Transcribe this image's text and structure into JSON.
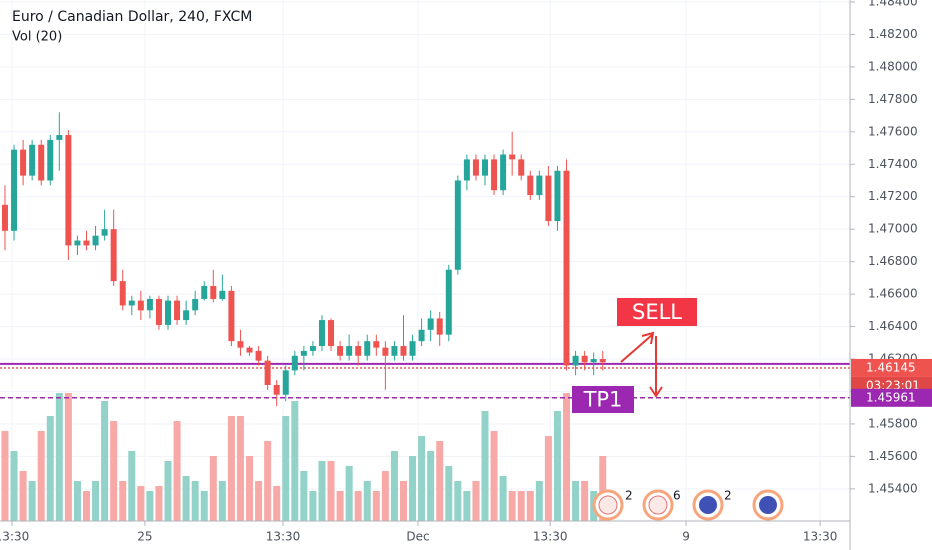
{
  "chart_data": {
    "type": "candlestick",
    "title": "Euro / Canadian Dollar, 240, FXCM",
    "subtitle": "Vol (20)",
    "up_color": "#26a69a",
    "down_color": "#ef5350",
    "volume_up_color": "#92d2c8",
    "volume_down_color": "#f7a9a7",
    "grid": true,
    "x": [
      0,
      1,
      2,
      3,
      4,
      5,
      6,
      7,
      8,
      9,
      10,
      11,
      12,
      13,
      14,
      15,
      16,
      17,
      18,
      19,
      20,
      21,
      22,
      23,
      24,
      25,
      26,
      27,
      28,
      29,
      30,
      31,
      32,
      33,
      34,
      35,
      36,
      37,
      38,
      39,
      40,
      41,
      42,
      43,
      44,
      45,
      46,
      47,
      48,
      49,
      50,
      51,
      52,
      53,
      54,
      55,
      56,
      57,
      58,
      59,
      60,
      61,
      62,
      63,
      64,
      65,
      66
    ],
    "open": [
      1.4715,
      1.4699,
      1.4749,
      1.4733,
      1.4752,
      1.473,
      1.4755,
      1.4758,
      1.469,
      1.4693,
      1.469,
      1.4696,
      1.47,
      1.4668,
      1.4653,
      1.4656,
      1.465,
      1.4657,
      1.4641,
      1.4656,
      1.4644,
      1.465,
      1.4657,
      1.4665,
      1.4657,
      1.4662,
      1.4631,
      1.4627,
      1.4625,
      1.4619,
      1.4604,
      1.4598,
      1.4613,
      1.4622,
      1.4625,
      1.4628,
      1.4644,
      1.4628,
      1.4622,
      1.4628,
      1.4622,
      1.4631,
      1.4627,
      1.4622,
      1.4628,
      1.4622,
      1.4631,
      1.4638,
      1.4645,
      1.4635,
      1.4675,
      1.473,
      1.4743,
      1.4733,
      1.4743,
      1.4724,
      1.4746,
      1.4743,
      1.4733,
      1.4721,
      1.4733,
      1.4705,
      1.4736,
      1.4616,
      1.4622,
      1.4618,
      1.462
    ],
    "high": [
      1.4727,
      1.4752,
      1.4755,
      1.4755,
      1.4755,
      1.4758,
      1.4772,
      1.4761,
      1.4696,
      1.4699,
      1.4702,
      1.4712,
      1.4712,
      1.4675,
      1.4659,
      1.4662,
      1.4659,
      1.4659,
      1.4659,
      1.4659,
      1.4656,
      1.4662,
      1.4668,
      1.4675,
      1.4672,
      1.4665,
      1.4638,
      1.4628,
      1.4628,
      1.4622,
      1.4607,
      1.4616,
      1.4625,
      1.4628,
      1.4631,
      1.4647,
      1.4645,
      1.4631,
      1.4635,
      1.4631,
      1.4635,
      1.4635,
      1.4631,
      1.4631,
      1.4647,
      1.4635,
      1.4645,
      1.465,
      1.4649,
      1.4678,
      1.4733,
      1.4746,
      1.4746,
      1.4746,
      1.4746,
      1.4749,
      1.476,
      1.4746,
      1.4736,
      1.4736,
      1.4739,
      1.4739,
      1.4743,
      1.4625,
      1.4625,
      1.4624,
      1.4625
    ],
    "low": [
      1.4687,
      1.4693,
      1.4727,
      1.473,
      1.4727,
      1.4727,
      1.4736,
      1.4681,
      1.4684,
      1.4687,
      1.4687,
      1.4693,
      1.4665,
      1.465,
      1.4647,
      1.4644,
      1.4645,
      1.4638,
      1.4638,
      1.4641,
      1.4641,
      1.4647,
      1.4656,
      1.4655,
      1.4656,
      1.4628,
      1.4622,
      1.4622,
      1.4616,
      1.4601,
      1.4591,
      1.4594,
      1.461,
      1.4613,
      1.4622,
      1.4625,
      1.4625,
      1.4619,
      1.4619,
      1.4616,
      1.4619,
      1.4622,
      1.4601,
      1.4619,
      1.4619,
      1.4619,
      1.4628,
      1.4631,
      1.4628,
      1.4631,
      1.4672,
      1.4724,
      1.473,
      1.4727,
      1.4721,
      1.4721,
      1.4733,
      1.473,
      1.4718,
      1.4718,
      1.4702,
      1.4699,
      1.4613,
      1.461,
      1.4613,
      1.461,
      1.4613
    ],
    "close": [
      1.4699,
      1.4749,
      1.4733,
      1.4752,
      1.473,
      1.4755,
      1.4758,
      1.469,
      1.4693,
      1.469,
      1.4696,
      1.47,
      1.4668,
      1.4653,
      1.4656,
      1.465,
      1.4657,
      1.4641,
      1.4656,
      1.4644,
      1.465,
      1.4657,
      1.4665,
      1.4657,
      1.4662,
      1.4631,
      1.4627,
      1.4624,
      1.4619,
      1.4604,
      1.4598,
      1.4613,
      1.4622,
      1.4625,
      1.4628,
      1.4644,
      1.4628,
      1.4622,
      1.4628,
      1.4622,
      1.4631,
      1.4627,
      1.4622,
      1.4628,
      1.4622,
      1.4631,
      1.4638,
      1.4645,
      1.4635,
      1.4675,
      1.473,
      1.4743,
      1.4733,
      1.4743,
      1.4724,
      1.4746,
      1.4743,
      1.4733,
      1.4721,
      1.4733,
      1.4705,
      1.4736,
      1.4616,
      1.4622,
      1.4618,
      1.462,
      1.4618
    ],
    "volume": [
      90,
      70,
      50,
      40,
      90,
      105,
      128,
      128,
      40,
      30,
      40,
      120,
      100,
      40,
      70,
      35,
      30,
      35,
      60,
      100,
      45,
      40,
      30,
      65,
      40,
      105,
      105,
      65,
      40,
      80,
      35,
      105,
      120,
      50,
      30,
      60,
      60,
      30,
      55,
      30,
      40,
      30,
      50,
      70,
      40,
      65,
      85,
      70,
      80,
      55,
      40,
      30,
      40,
      110,
      90,
      45,
      30,
      30,
      30,
      40,
      85,
      110,
      128,
      40,
      40,
      30,
      65
    ],
    "xlim": [
      -0.55,
      93.3
    ],
    "xticks": [
      {
        "value": 0.77,
        "label": "13:30"
      },
      {
        "value": 15.45,
        "label": "25"
      },
      {
        "value": 30.7,
        "label": "13:30"
      },
      {
        "value": 45.6,
        "label": "Dec"
      },
      {
        "value": 60.2,
        "label": "13:30"
      },
      {
        "value": 75.2,
        "label": "9"
      },
      {
        "value": 90.0,
        "label": "13:30"
      }
    ],
    "ylim": [
      1.45202,
      1.48412
    ],
    "yticks": [
      {
        "value": 1.454,
        "label": "1.45400"
      },
      {
        "value": 1.456,
        "label": "1.45600"
      },
      {
        "value": 1.458,
        "label": "1.45800"
      },
      {
        "value": 1.46,
        "label": "1.46000"
      },
      {
        "value": 1.462,
        "label": "1.46200"
      },
      {
        "value": 1.464,
        "label": "1.46400"
      },
      {
        "value": 1.466,
        "label": "1.46600"
      },
      {
        "value": 1.468,
        "label": "1.46800"
      },
      {
        "value": 1.47,
        "label": "1.47000"
      },
      {
        "value": 1.472,
        "label": "1.47200"
      },
      {
        "value": 1.474,
        "label": "1.47400"
      },
      {
        "value": 1.476,
        "label": "1.47600"
      },
      {
        "value": 1.478,
        "label": "1.47800"
      },
      {
        "value": 1.48,
        "label": "1.48000"
      },
      {
        "value": 1.482,
        "label": "1.48200"
      },
      {
        "value": 1.484,
        "label": "1.48400"
      }
    ],
    "hlines": [
      {
        "value": 1.4617,
        "color": "#9c27b0",
        "style": "solid"
      },
      {
        "value": 1.46145,
        "label": "1.46145",
        "color": "#ef5350",
        "style": "dotted",
        "countdown": "03:23:01"
      },
      {
        "value": 1.45961,
        "label": "1.45961",
        "color": "#9c27b0",
        "style": "dashed"
      }
    ],
    "annotations": [
      {
        "text": "SELL",
        "color": "#f23645"
      },
      {
        "text": "TP1",
        "color": "#9c27b0"
      }
    ],
    "event_counts": [
      2,
      6,
      2
    ]
  }
}
